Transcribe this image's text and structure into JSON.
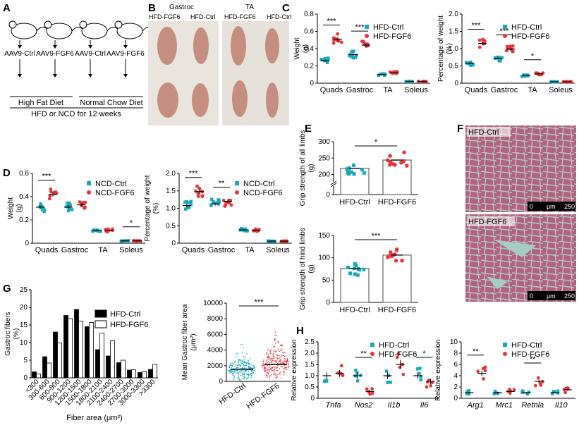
{
  "colors": {
    "ctrl": "#17a9b8",
    "fgf6": "#e8343b",
    "hist_ctrl": "#000000",
    "hist_fgf6": "#ffffff",
    "muscle": "#b7607e",
    "muscle_bg": "#a6cdc5",
    "photo_bg": "#e9e4dd",
    "tissue": "#c48f80"
  },
  "panelA": {
    "letter": "A",
    "mice": [
      {
        "label": "AAV9-Ctrl"
      },
      {
        "label": "AAV9-FGF6"
      },
      {
        "label": "AAV9-Ctrl"
      },
      {
        "label": "AAV9-FGF6"
      }
    ],
    "diet_hfd": "High Fat Diet",
    "diet_ncd": "Normal Chow Diet",
    "duration": "HFD or NCD for 12 weeks"
  },
  "panelB": {
    "letter": "B",
    "title_left": "Gastroc",
    "title_right": "TA",
    "labels": [
      "HFD-FGF6",
      "HFD-Ctrl",
      "HFD-FGF6",
      "HFD-Ctrl"
    ]
  },
  "panelF": {
    "letter": "F",
    "top_label": "HFD-Ctrl",
    "bottom_label": "HFD-FGF6",
    "scale_left": "0",
    "scale_mid": "μm",
    "scale_right": "250"
  },
  "chart_data": [
    {
      "id": "C1",
      "letter": "C",
      "type": "bar",
      "title": "",
      "ylabel": "Weight\n(g)",
      "ylim": [
        0,
        0.8
      ],
      "yticks": [
        "0",
        "0.2",
        "0.4",
        "0.6",
        "0.8"
      ],
      "categories": [
        "Quads",
        "Gastroc",
        "TA",
        "Soleus"
      ],
      "series": [
        {
          "name": "HFD-Ctrl",
          "values": [
            0.26,
            0.33,
            0.1,
            0.02
          ]
        },
        {
          "name": "HFD-FGF6",
          "values": [
            0.51,
            0.44,
            0.12,
            0.02
          ]
        }
      ],
      "significance": [
        "***",
        "***",
        "",
        ""
      ]
    },
    {
      "id": "C2",
      "type": "bar",
      "ylabel": "Percentage of weight\n(%)",
      "ylim": [
        0,
        2.0
      ],
      "yticks": [
        "0",
        "0.5",
        "1.0",
        "1.5",
        "2.0"
      ],
      "categories": [
        "Quads",
        "Gastroc",
        "TA",
        "Soleus"
      ],
      "series": [
        {
          "name": "HFD-Ctrl",
          "values": [
            0.58,
            0.72,
            0.22,
            0.04
          ]
        },
        {
          "name": "HFD-FGF6",
          "values": [
            1.15,
            0.99,
            0.27,
            0.04
          ]
        }
      ],
      "significance": [
        "***",
        "***",
        "*",
        ""
      ]
    },
    {
      "id": "D1",
      "letter": "D",
      "type": "bar",
      "ylabel": "Weight\n(g)",
      "ylim": [
        0,
        0.6
      ],
      "yticks": [
        "0",
        "0.2",
        "0.4",
        "0.6"
      ],
      "categories": [
        "Quads",
        "Gastroc",
        "TA",
        "Soleus"
      ],
      "series": [
        {
          "name": "NCD-Ctrl",
          "values": [
            0.31,
            0.31,
            0.11,
            0.02
          ]
        },
        {
          "name": "NCD-FGF6",
          "values": [
            0.42,
            0.33,
            0.11,
            0.02
          ]
        }
      ],
      "significance": [
        "***",
        "",
        "",
        "*"
      ]
    },
    {
      "id": "D2",
      "type": "bar",
      "ylabel": "Percentage of weight\n(%)",
      "ylim": [
        0,
        2.0
      ],
      "yticks": [
        "0",
        "0.5",
        "1.0",
        "1.5",
        "2.0"
      ],
      "categories": [
        "Quads",
        "Gastroc",
        "TA",
        "Soleus"
      ],
      "series": [
        {
          "name": "NCD-Ctrl",
          "values": [
            1.08,
            1.13,
            0.38,
            0.06
          ]
        },
        {
          "name": "NCD-FGF6",
          "values": [
            1.48,
            1.2,
            0.37,
            0.06
          ]
        }
      ],
      "significance": [
        "***",
        "**",
        "",
        ""
      ]
    },
    {
      "id": "E1",
      "letter": "E",
      "type": "bar",
      "ylabel": "Grip strength of all limbs\n(g)",
      "ylim": [
        0,
        300
      ],
      "yticks": [
        "0",
        "200",
        "250",
        "300"
      ],
      "axis_break": true,
      "categories": [
        "HFD-Ctrl",
        "HFD-FGF6"
      ],
      "values": [
        219,
        244
      ],
      "significance": "*"
    },
    {
      "id": "E2",
      "type": "bar",
      "ylabel": "Grip strength of hind limbs\n(g)",
      "ylim": [
        0,
        150
      ],
      "yticks": [
        "0",
        "50",
        "100",
        "150"
      ],
      "categories": [
        "HFD-Ctrl",
        "HFD-FGF6"
      ],
      "values": [
        76,
        106
      ],
      "significance": "***"
    },
    {
      "id": "G1",
      "letter": "G",
      "type": "bar",
      "ylabel": "Gastroc fibers\n(%)",
      "xlabel": "Fiber area (μm²)",
      "ylim": [
        0,
        25
      ],
      "yticks": [
        "0",
        "5",
        "10",
        "15",
        "20",
        "25"
      ],
      "categories": [
        "<300",
        "300-600",
        "600-900",
        "900-1200",
        "1200-1500",
        "1500-1800",
        "1800-2100",
        "2100-2400",
        "2400-2700",
        "2700-3000",
        "3000-3300",
        ">3300"
      ],
      "series": [
        {
          "name": "HFD-Ctrl",
          "values": [
            1.7,
            6.0,
            13.0,
            17.7,
            19.4,
            14.5,
            8.0,
            6.2,
            4.3,
            2.2,
            1.5,
            2.4
          ]
        },
        {
          "name": "HFD-FGF6",
          "values": [
            1.1,
            4.2,
            9.9,
            16.8,
            16.1,
            15.7,
            12.7,
            10.5,
            5.0,
            2.3,
            1.8,
            3.8
          ]
        }
      ]
    },
    {
      "id": "G2",
      "type": "scatter",
      "ylabel": "Mean Gastroc fiber area\n(μm²)",
      "ylim": [
        0,
        10000
      ],
      "yticks": [
        "0",
        "2000",
        "4000",
        "6000",
        "8000",
        "10000"
      ],
      "categories": [
        "HFD-Ctrl",
        "HFD-FGF6"
      ],
      "values": [
        1550,
        2150
      ],
      "significance": "***"
    },
    {
      "id": "H1",
      "letter": "H",
      "type": "bar",
      "ylabel": "Relative expression",
      "ylim": [
        0,
        2.5
      ],
      "yticks": [
        "0",
        "0.5",
        "1.0",
        "1.5",
        "2.0",
        "2.5"
      ],
      "categories": [
        "Tnfa",
        "Nos2",
        "Il1b",
        "Il6"
      ],
      "series": [
        {
          "name": "HFD-Ctrl",
          "values": [
            1.0,
            1.0,
            1.0,
            1.0
          ]
        },
        {
          "name": "HFD-FGF6",
          "values": [
            1.1,
            0.3,
            1.5,
            0.75
          ]
        }
      ],
      "significance": [
        "",
        "**",
        "",
        "*"
      ]
    },
    {
      "id": "H2",
      "type": "bar",
      "ylabel": "Relative expression",
      "ylim": [
        0,
        10
      ],
      "yticks": [
        "0",
        "2",
        "4",
        "6",
        "8",
        "10"
      ],
      "categories": [
        "Arg1",
        "Mrc1",
        "Retnla",
        "Il10"
      ],
      "series": [
        {
          "name": "HFD-Ctrl",
          "values": [
            1.0,
            1.0,
            1.0,
            1.0
          ]
        },
        {
          "name": "HFD-FGF6",
          "values": [
            4.4,
            1.2,
            3.0,
            1.5
          ]
        }
      ],
      "significance": [
        "**",
        "",
        "**",
        ""
      ]
    }
  ]
}
